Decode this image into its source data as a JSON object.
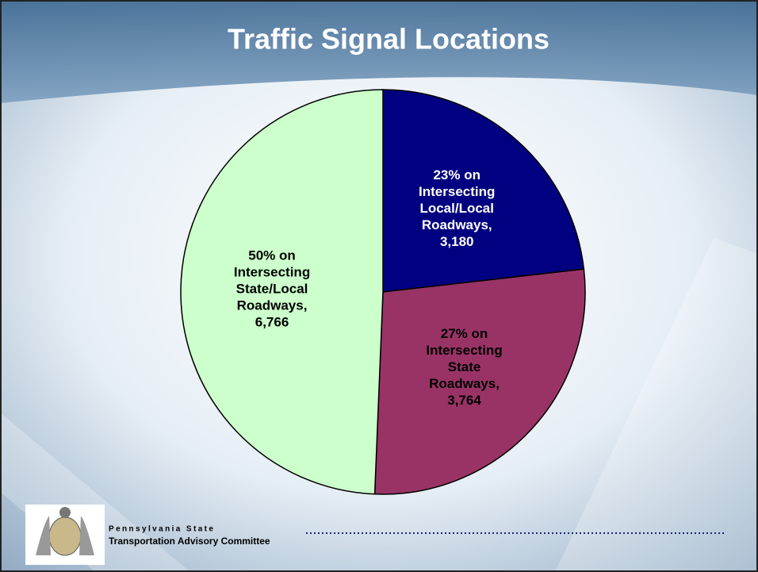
{
  "chart_data": {
    "type": "pie",
    "title": "Traffic Signal Locations",
    "values": [
      3180,
      3764,
      6766
    ],
    "value_labels": [
      [
        "23% on",
        "Intersecting",
        "Local/Local",
        "Roadways,",
        "3,180"
      ],
      [
        "27% on",
        "Intersecting",
        "State",
        "Roadways,",
        "3,764"
      ],
      [
        "50% on",
        "Intersecting",
        "State/Local",
        "Roadways,",
        "6,766"
      ]
    ],
    "colors": [
      "#000080",
      "#993366",
      "#ccffcc"
    ],
    "label_colors": [
      "#ffffff",
      "#000000",
      "#000000"
    ]
  },
  "footer": {
    "org_line1": "Pennsylvania State",
    "org_line2": "Transportation Advisory Committee"
  }
}
